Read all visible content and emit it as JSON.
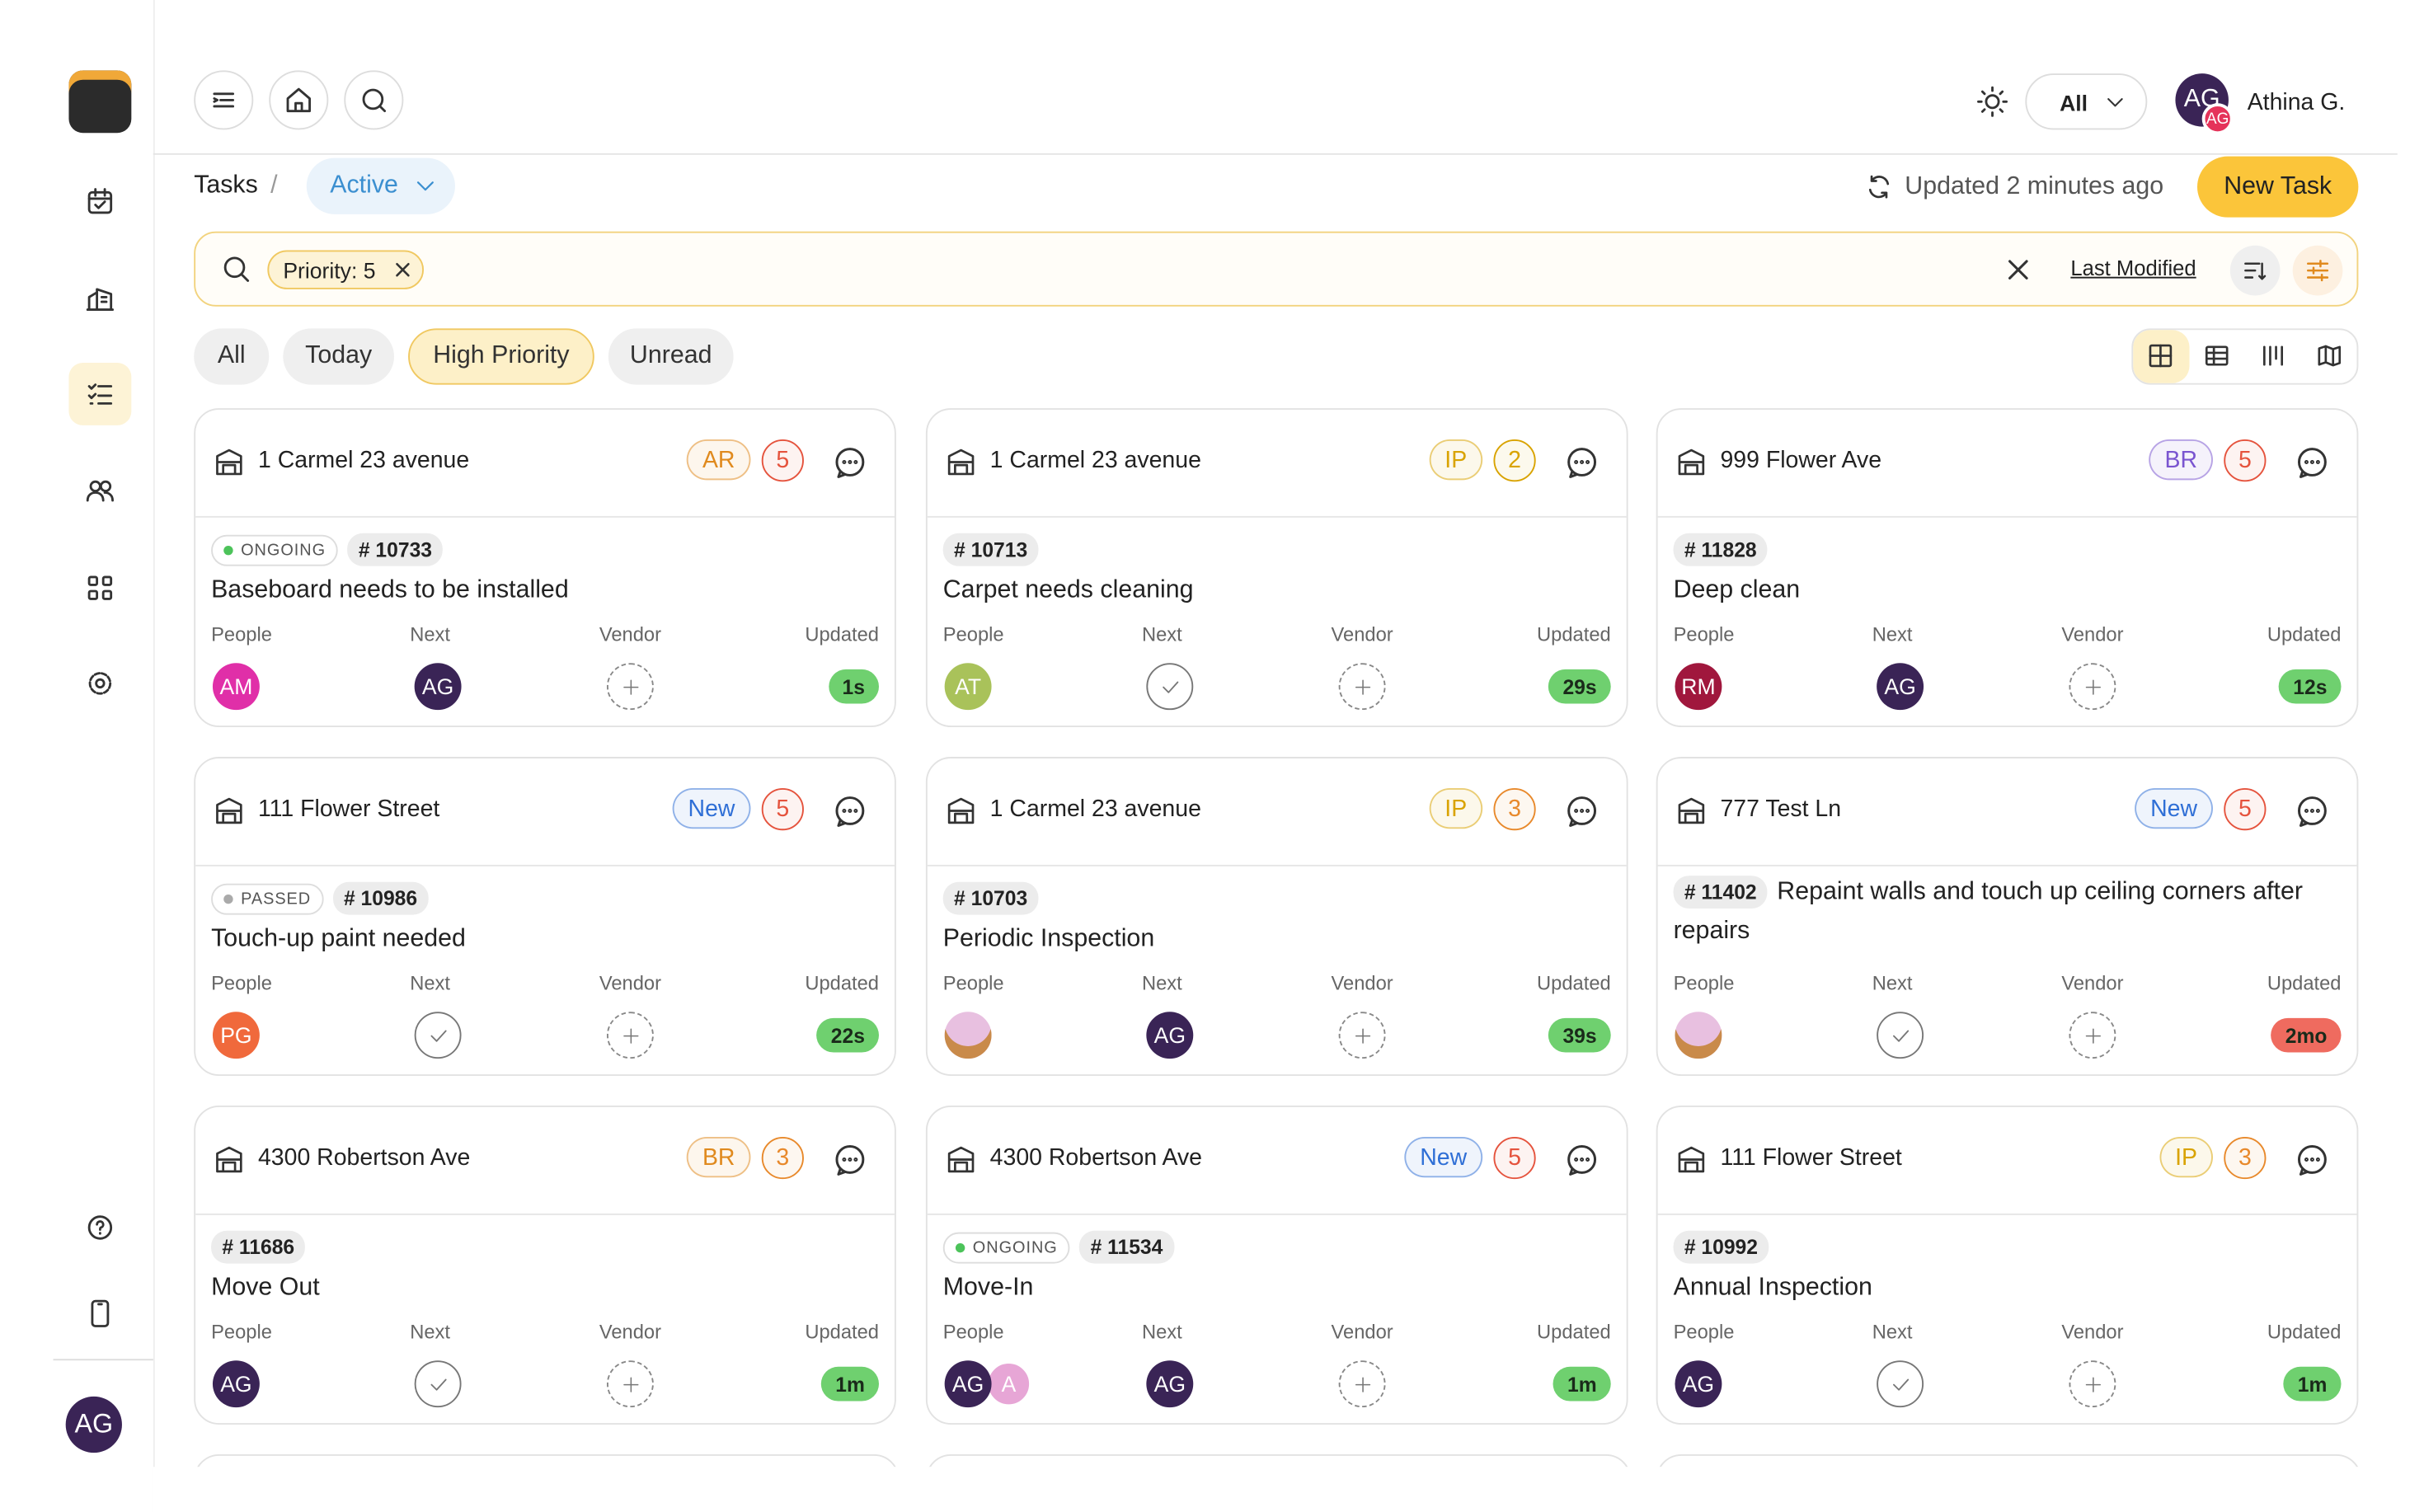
{
  "user": {
    "initials": "AG",
    "name": "Athina G."
  },
  "header": {
    "scope": "All",
    "breadcrumb": "Tasks",
    "separator": "/",
    "view": "Active",
    "updated": "Updated 2 minutes ago",
    "new_task": "New Task"
  },
  "search": {
    "chip": "Priority: 5",
    "sort": "Last Modified"
  },
  "tabs": [
    "All",
    "Today",
    "High Priority",
    "Unread"
  ],
  "columns": [
    "People",
    "Next",
    "Vendor",
    "Updated"
  ],
  "cards": [
    {
      "address": "1 Carmel 23 avenue",
      "badge": "AR",
      "badge_color": "#e08a1e",
      "priority": 5,
      "priority_color": "#e5533d",
      "status": "ONGOING",
      "status_color": "#4cc35a",
      "id": "# 10733",
      "title": "Baseboard needs to be installed",
      "people": [
        {
          "initials": "AM",
          "color": "#e02fa8"
        }
      ],
      "next": {
        "initials": "AG",
        "color": "#3a2456"
      },
      "updated": "1s",
      "updated_color": "#6fd06f"
    },
    {
      "address": "1 Carmel 23 avenue",
      "badge": "IP",
      "badge_color": "#d9a300",
      "priority": 2,
      "priority_color": "#d9a300",
      "id": "# 10713",
      "title": "Carpet needs cleaning",
      "people": [
        {
          "initials": "AT",
          "color": "#a9c25a"
        }
      ],
      "updated": "29s",
      "updated_color": "#6fd06f"
    },
    {
      "address": "999 Flower Ave",
      "badge": "BR",
      "badge_color": "#7a55d0",
      "priority": 5,
      "priority_color": "#e5533d",
      "id": "# 11828",
      "title": "Deep clean",
      "people": [
        {
          "initials": "RM",
          "color": "#a0173d"
        }
      ],
      "next": {
        "initials": "AG",
        "color": "#3a2456"
      },
      "updated": "12s",
      "updated_color": "#6fd06f"
    },
    {
      "address": "111 Flower Street",
      "badge": "New",
      "badge_color": "#2f6fd6",
      "priority": 5,
      "priority_color": "#e5533d",
      "status": "PASSED",
      "status_color": "#aaaaaa",
      "id": "# 10986",
      "title": "Touch-up paint needed",
      "people": [
        {
          "initials": "PG",
          "color": "#f0693c"
        }
      ],
      "updated": "22s",
      "updated_color": "#6fd06f"
    },
    {
      "address": "1 Carmel 23 avenue",
      "badge": "IP",
      "badge_color": "#d9a300",
      "priority": 3,
      "priority_color": "#e8892b",
      "id": "# 10703",
      "title": "Periodic Inspection",
      "people": [
        {
          "color": "#e8c0e0"
        }
      ],
      "next": {
        "initials": "AG",
        "color": "#3a2456"
      },
      "updated": "39s",
      "updated_color": "#6fd06f"
    },
    {
      "address": "777 Test Ln",
      "badge": "New",
      "badge_color": "#2f6fd6",
      "priority": 5,
      "priority_color": "#e5533d",
      "id": "# 11402",
      "title": "Repaint walls and touch up ceiling corners after repairs",
      "people": [
        {
          "color": "#e8c0e0"
        }
      ],
      "updated": "2mo",
      "updated_color": "#ef6b5f"
    },
    {
      "address": "4300 Robertson Ave",
      "badge": "BR",
      "badge_color": "#e08a1e",
      "priority": 3,
      "priority_color": "#e8892b",
      "id": "# 11686",
      "title": "Move Out",
      "people": [
        {
          "initials": "AG",
          "color": "#3a2456"
        }
      ],
      "updated": "1m",
      "updated_color": "#6fd06f"
    },
    {
      "address": "4300 Robertson Ave",
      "badge": "New",
      "badge_color": "#2f6fd6",
      "priority": 5,
      "priority_color": "#e5533d",
      "status": "ONGOING",
      "status_color": "#4cc35a",
      "id": "# 11534",
      "title": "Move-In",
      "people": [
        {
          "initials": "AG",
          "color": "#3a2456"
        },
        {
          "initials": "A",
          "color": "#e7a6d6"
        }
      ],
      "next": {
        "initials": "AG",
        "color": "#3a2456"
      },
      "updated": "1m",
      "updated_color": "#6fd06f"
    },
    {
      "address": "111 Flower Street",
      "badge": "IP",
      "badge_color": "#d9a300",
      "priority": 3,
      "priority_color": "#e8892b",
      "id": "# 10992",
      "title": "Annual Inspection",
      "people": [
        {
          "initials": "AG",
          "color": "#3a2456"
        }
      ],
      "updated": "1m",
      "updated_color": "#6fd06f"
    }
  ]
}
